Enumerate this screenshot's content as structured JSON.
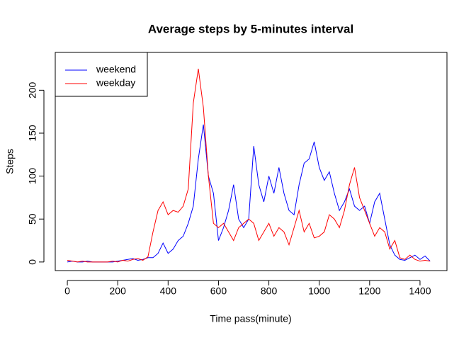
{
  "chart_data": {
    "type": "line",
    "title": "Average steps by 5-minutes interval",
    "x_label": "Time pass(minute)",
    "y_label": "Steps",
    "x": [
      0,
      20,
      40,
      60,
      80,
      100,
      120,
      140,
      160,
      180,
      200,
      220,
      240,
      260,
      280,
      300,
      320,
      340,
      360,
      380,
      400,
      420,
      440,
      460,
      480,
      500,
      520,
      540,
      560,
      580,
      600,
      620,
      640,
      660,
      680,
      700,
      720,
      740,
      760,
      780,
      800,
      820,
      840,
      860,
      880,
      900,
      920,
      940,
      960,
      980,
      1000,
      1020,
      1040,
      1060,
      1080,
      1100,
      1120,
      1140,
      1160,
      1180,
      1200,
      1220,
      1240,
      1260,
      1280,
      1300,
      1320,
      1340,
      1360,
      1380,
      1400,
      1420,
      1440
    ],
    "series": [
      {
        "name": "weekend",
        "color": "#0000ff",
        "values": [
          0,
          1,
          0,
          0,
          1,
          0,
          0,
          0,
          0,
          0,
          1,
          2,
          3,
          4,
          2,
          3,
          5,
          5,
          10,
          22,
          10,
          15,
          25,
          30,
          45,
          65,
          120,
          160,
          100,
          80,
          25,
          40,
          60,
          90,
          50,
          40,
          50,
          135,
          90,
          70,
          100,
          80,
          110,
          80,
          60,
          55,
          90,
          115,
          120,
          140,
          110,
          95,
          105,
          80,
          60,
          70,
          85,
          65,
          60,
          65,
          45,
          70,
          80,
          50,
          20,
          8,
          3,
          2,
          5,
          8,
          3,
          7,
          1
        ]
      },
      {
        "name": "weekday",
        "color": "#ff0000",
        "values": [
          2,
          1,
          0,
          1,
          0,
          0,
          0,
          0,
          0,
          1,
          0,
          2,
          1,
          3,
          4,
          2,
          6,
          35,
          60,
          70,
          55,
          60,
          58,
          65,
          85,
          185,
          225,
          180,
          100,
          45,
          40,
          45,
          35,
          25,
          40,
          45,
          50,
          45,
          25,
          35,
          45,
          30,
          40,
          35,
          20,
          40,
          60,
          35,
          45,
          28,
          30,
          35,
          55,
          50,
          40,
          60,
          90,
          110,
          75,
          60,
          45,
          30,
          40,
          35,
          15,
          25,
          5,
          3,
          8,
          3,
          1,
          2,
          1
        ]
      }
    ],
    "xlim": [
      -48,
      1507
    ],
    "ylim": [
      -10,
      244
    ],
    "xticks": [
      0,
      200,
      400,
      600,
      800,
      1000,
      1200,
      1400
    ],
    "yticks": [
      0,
      50,
      100,
      150,
      200
    ],
    "legend": "top-left"
  }
}
